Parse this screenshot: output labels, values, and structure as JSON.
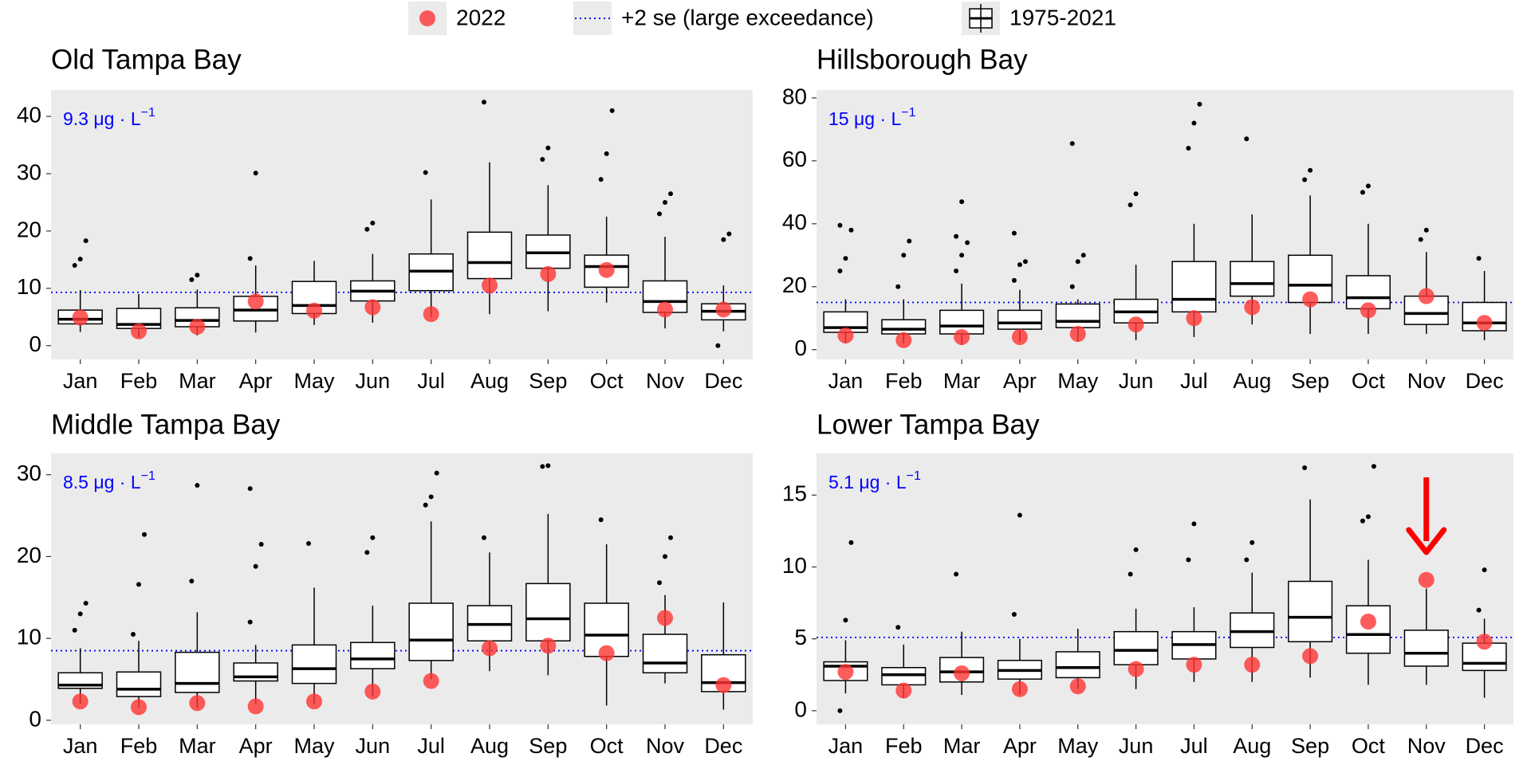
{
  "legend": [
    {
      "label": "2022",
      "color": "#ff3333"
    },
    {
      "label": "+2 se (large exceedance)",
      "color": "#0000ff"
    },
    {
      "label": "1975-2021"
    }
  ],
  "chart_data": [
    {
      "type": "box",
      "title": "Old Tampa Bay",
      "annotation": {
        "text": "9.3 μg · L",
        "sup": "−1"
      },
      "threshold": 9.3,
      "categories": [
        "Jan",
        "Feb",
        "Mar",
        "Apr",
        "May",
        "Jun",
        "Jul",
        "Aug",
        "Sep",
        "Oct",
        "Nov",
        "Dec"
      ],
      "ylim": [
        -2.4,
        44.6
      ],
      "yticks": [
        0,
        10,
        20,
        30,
        40
      ],
      "boxes": [
        {
          "whislo": 2.4,
          "q1": 3.8,
          "med": 4.6,
          "q3": 6.2,
          "whishi": 9.7,
          "fliers": [
            14,
            15.1,
            18.3
          ]
        },
        {
          "whislo": 1.5,
          "q1": 3.0,
          "med": 3.7,
          "q3": 6.5,
          "whishi": 9.0,
          "fliers": []
        },
        {
          "whislo": 1.8,
          "q1": 3.3,
          "med": 4.4,
          "q3": 6.6,
          "whishi": 9.8,
          "fliers": [
            11.5,
            12.3
          ]
        },
        {
          "whislo": 2.3,
          "q1": 4.3,
          "med": 6.2,
          "q3": 8.6,
          "whishi": 14,
          "fliers": [
            15.2,
            30.1
          ]
        },
        {
          "whislo": 3.6,
          "q1": 5.6,
          "med": 7.0,
          "q3": 11.2,
          "whishi": 14.8,
          "fliers": []
        },
        {
          "whislo": 4,
          "q1": 7.8,
          "med": 9.5,
          "q3": 11.3,
          "whishi": 16,
          "fliers": [
            20.3,
            21.4
          ]
        },
        {
          "whislo": 5,
          "q1": 9.6,
          "med": 13.0,
          "q3": 16,
          "whishi": 25.5,
          "fliers": [
            30.2
          ]
        },
        {
          "whislo": 5.5,
          "q1": 11.7,
          "med": 14.5,
          "q3": 19.8,
          "whishi": 32,
          "fliers": [
            42.5
          ]
        },
        {
          "whislo": 6,
          "q1": 13.5,
          "med": 16.2,
          "q3": 19.3,
          "whishi": 28,
          "fliers": [
            32.5,
            34.5
          ]
        },
        {
          "whislo": 7.5,
          "q1": 10.2,
          "med": 13.8,
          "q3": 15.8,
          "whishi": 22.5,
          "fliers": [
            29,
            33.5,
            41
          ]
        },
        {
          "whislo": 3,
          "q1": 5.8,
          "med": 7.7,
          "q3": 11.3,
          "whishi": 19,
          "fliers": [
            23,
            25,
            26.5
          ]
        },
        {
          "whislo": 2.5,
          "q1": 4.5,
          "med": 6.0,
          "q3": 7.3,
          "whishi": 10.5,
          "fliers": [
            0,
            18.5,
            19.5
          ]
        }
      ],
      "values": [
        4.9,
        2.5,
        3.3,
        7.7,
        6.1,
        6.7,
        5.5,
        10.5,
        12.5,
        13.2,
        6.3,
        6.3
      ]
    },
    {
      "type": "box",
      "title": "Hillsborough Bay",
      "annotation": {
        "text": "15 μg · L",
        "sup": "−1"
      },
      "threshold": 15,
      "categories": [
        "Jan",
        "Feb",
        "Mar",
        "Apr",
        "May",
        "Jun",
        "Jul",
        "Aug",
        "Sep",
        "Oct",
        "Nov",
        "Dec"
      ],
      "ylim": [
        -3.1,
        82.5
      ],
      "yticks": [
        0,
        20,
        40,
        60,
        80
      ],
      "boxes": [
        {
          "whislo": 2,
          "q1": 5.5,
          "med": 7,
          "q3": 12,
          "whishi": 16,
          "fliers": [
            25,
            29,
            38,
            39.5
          ]
        },
        {
          "whislo": 2,
          "q1": 5,
          "med": 6.5,
          "q3": 9.5,
          "whishi": 16,
          "fliers": [
            20,
            30,
            34.5
          ]
        },
        {
          "whislo": 1.5,
          "q1": 5,
          "med": 7.5,
          "q3": 12.5,
          "whishi": 21,
          "fliers": [
            25,
            30,
            34,
            36,
            47
          ]
        },
        {
          "whislo": 2.5,
          "q1": 6.5,
          "med": 8.5,
          "q3": 12.5,
          "whishi": 19,
          "fliers": [
            22,
            27,
            28,
            37
          ]
        },
        {
          "whislo": 2.5,
          "q1": 7,
          "med": 9,
          "q3": 14.5,
          "whishi": 16,
          "fliers": [
            20,
            28,
            30,
            65.5
          ]
        },
        {
          "whislo": 3,
          "q1": 8.5,
          "med": 12,
          "q3": 16,
          "whishi": 27,
          "fliers": [
            46,
            49.5
          ]
        },
        {
          "whislo": 4,
          "q1": 12,
          "med": 16,
          "q3": 28,
          "whishi": 40,
          "fliers": [
            64,
            72,
            78
          ]
        },
        {
          "whislo": 8,
          "q1": 17,
          "med": 21,
          "q3": 28,
          "whishi": 43,
          "fliers": [
            67
          ]
        },
        {
          "whislo": 5,
          "q1": 15,
          "med": 20.5,
          "q3": 30,
          "whishi": 49,
          "fliers": [
            54,
            57
          ]
        },
        {
          "whislo": 5,
          "q1": 13,
          "med": 16.5,
          "q3": 23.5,
          "whishi": 40,
          "fliers": [
            50,
            52
          ]
        },
        {
          "whislo": 5,
          "q1": 8,
          "med": 11.5,
          "q3": 17,
          "whishi": 31,
          "fliers": [
            35,
            38
          ]
        },
        {
          "whislo": 3,
          "q1": 6,
          "med": 8.5,
          "q3": 15,
          "whishi": 25,
          "fliers": [
            29
          ]
        }
      ],
      "values": [
        4.5,
        3,
        4,
        4,
        5,
        8,
        10,
        13.5,
        16,
        12.5,
        17,
        8.5
      ]
    },
    {
      "type": "box",
      "title": "Middle Tampa Bay",
      "annotation": {
        "text": "8.5 μg · L",
        "sup": "−1"
      },
      "threshold": 8.5,
      "categories": [
        "Jan",
        "Feb",
        "Mar",
        "Apr",
        "May",
        "Jun",
        "Jul",
        "Aug",
        "Sep",
        "Oct",
        "Nov",
        "Dec"
      ],
      "ylim": [
        -0.5,
        32.6
      ],
      "yticks": [
        0,
        10,
        20,
        30
      ],
      "boxes": [
        {
          "whislo": 2,
          "q1": 3.9,
          "med": 4.3,
          "q3": 5.8,
          "whishi": 8.8,
          "fliers": [
            11,
            13,
            14.3
          ]
        },
        {
          "whislo": 1.5,
          "q1": 2.9,
          "med": 3.8,
          "q3": 5.9,
          "whishi": 9.7,
          "fliers": [
            10.5,
            16.6,
            22.7
          ]
        },
        {
          "whislo": 1.5,
          "q1": 3.4,
          "med": 4.5,
          "q3": 8.3,
          "whishi": 13.2,
          "fliers": [
            17,
            28.7
          ]
        },
        {
          "whislo": 2,
          "q1": 4.8,
          "med": 5.3,
          "q3": 7,
          "whishi": 9.2,
          "fliers": [
            12,
            18.8,
            21.5,
            28.3
          ]
        },
        {
          "whislo": 2,
          "q1": 4.5,
          "med": 6.3,
          "q3": 9.2,
          "whishi": 16.2,
          "fliers": [
            21.6
          ]
        },
        {
          "whislo": 3,
          "q1": 6.3,
          "med": 7.5,
          "q3": 9.5,
          "whishi": 14,
          "fliers": [
            20.5,
            22.3
          ]
        },
        {
          "whislo": 5,
          "q1": 7.3,
          "med": 9.8,
          "q3": 14.3,
          "whishi": 24.3,
          "fliers": [
            26.3,
            27.3,
            30.2
          ]
        },
        {
          "whislo": 6,
          "q1": 9.7,
          "med": 11.7,
          "q3": 14,
          "whishi": 20.5,
          "fliers": [
            22.3
          ]
        },
        {
          "whislo": 5.5,
          "q1": 9.7,
          "med": 12.4,
          "q3": 16.7,
          "whishi": 25.2,
          "fliers": [
            31,
            31.1
          ]
        },
        {
          "whislo": 1.8,
          "q1": 7.8,
          "med": 10.4,
          "q3": 14.3,
          "whishi": 21.5,
          "fliers": [
            24.5
          ]
        },
        {
          "whislo": 4.5,
          "q1": 5.8,
          "med": 7,
          "q3": 10.5,
          "whishi": 15.3,
          "fliers": [
            16.8,
            20,
            22.3
          ]
        },
        {
          "whislo": 1.3,
          "q1": 3.5,
          "med": 4.6,
          "q3": 8,
          "whishi": 14.4,
          "fliers": []
        }
      ],
      "values": [
        2.3,
        1.6,
        2.1,
        1.7,
        2.3,
        3.5,
        4.8,
        8.8,
        9.1,
        8.2,
        12.5,
        4.3
      ]
    },
    {
      "type": "box",
      "title": "Lower Tampa Bay",
      "annotation": {
        "text": "5.1 μg · L",
        "sup": "−1"
      },
      "threshold": 5.1,
      "categories": [
        "Jan",
        "Feb",
        "Mar",
        "Apr",
        "May",
        "Jun",
        "Jul",
        "Aug",
        "Sep",
        "Oct",
        "Nov",
        "Dec"
      ],
      "ylim": [
        -0.95,
        17.9
      ],
      "yticks": [
        0,
        5,
        10,
        15
      ],
      "boxes": [
        {
          "whislo": 1.2,
          "q1": 2.1,
          "med": 3.1,
          "q3": 3.4,
          "whishi": 4.9,
          "fliers": [
            0,
            6.3,
            11.7
          ]
        },
        {
          "whislo": 0.9,
          "q1": 1.8,
          "med": 2.5,
          "q3": 3,
          "whishi": 4.6,
          "fliers": [
            5.8
          ]
        },
        {
          "whislo": 1.1,
          "q1": 2,
          "med": 2.7,
          "q3": 3.7,
          "whishi": 5.5,
          "fliers": [
            9.5
          ]
        },
        {
          "whislo": 1.1,
          "q1": 2.2,
          "med": 2.8,
          "q3": 3.5,
          "whishi": 5,
          "fliers": [
            6.7,
            13.6
          ]
        },
        {
          "whislo": 1.5,
          "q1": 2.3,
          "med": 3,
          "q3": 4.1,
          "whishi": 5.7,
          "fliers": []
        },
        {
          "whislo": 1.5,
          "q1": 3.2,
          "med": 4.2,
          "q3": 5.5,
          "whishi": 7.1,
          "fliers": [
            9.5,
            11.2
          ]
        },
        {
          "whislo": 2,
          "q1": 3.6,
          "med": 4.6,
          "q3": 5.5,
          "whishi": 7.2,
          "fliers": [
            10.5,
            13
          ]
        },
        {
          "whislo": 2,
          "q1": 4.4,
          "med": 5.5,
          "q3": 6.8,
          "whishi": 9.6,
          "fliers": [
            10.5,
            11.7
          ]
        },
        {
          "whislo": 2.3,
          "q1": 4.8,
          "med": 6.5,
          "q3": 9,
          "whishi": 14.7,
          "fliers": [
            16.9
          ]
        },
        {
          "whislo": 1.8,
          "q1": 4,
          "med": 5.3,
          "q3": 7.3,
          "whishi": 10.5,
          "fliers": [
            13.2,
            13.5,
            17
          ]
        },
        {
          "whislo": 1.8,
          "q1": 3.1,
          "med": 4,
          "q3": 5.6,
          "whishi": 8.5,
          "fliers": []
        },
        {
          "whislo": 0.9,
          "q1": 2.8,
          "med": 3.3,
          "q3": 4.7,
          "whishi": 6.4,
          "fliers": [
            7,
            9.8
          ]
        }
      ],
      "values": [
        2.7,
        1.4,
        2.6,
        1.5,
        1.7,
        2.9,
        3.2,
        3.2,
        3.8,
        6.2,
        9.1,
        4.8
      ]
    }
  ]
}
